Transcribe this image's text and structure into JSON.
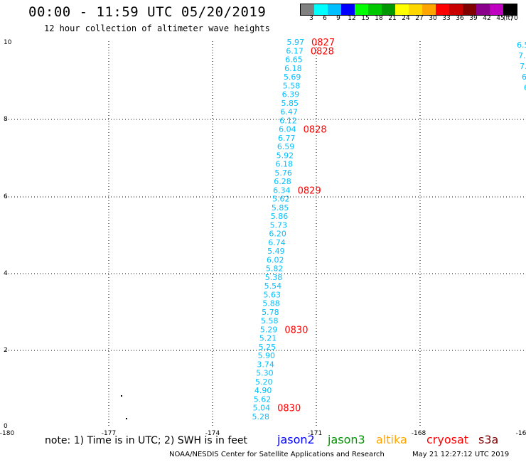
{
  "title": "00:00 - 11:59 UTC 05/20/2019",
  "subtitle": "12 hour collection of altimeter wave heights",
  "legend": {
    "labels": [
      "3",
      "6",
      "9",
      "12",
      "15",
      "18",
      "21",
      "24",
      "27",
      "30",
      "33",
      "36",
      "39",
      "42",
      "45",
      "70"
    ],
    "unit": "(ft)",
    "colors": [
      "#808080",
      "#00ffff",
      "#00bfff",
      "#0000ff",
      "#00ff00",
      "#00c800",
      "#009600",
      "#ffff00",
      "#ffd700",
      "#ffa500",
      "#ff0000",
      "#c80000",
      "#800000",
      "#8b008b",
      "#c000c0",
      "#000000"
    ]
  },
  "axes": {
    "x_ticks": [
      "-180",
      "-177",
      "-174",
      "-171",
      "-168",
      "-16"
    ],
    "y_ticks": [
      "10",
      "8",
      "6",
      "4",
      "2",
      "0"
    ]
  },
  "track": {
    "color": "#00bfff",
    "values": [
      "5.97",
      "6.17",
      "6.65",
      "6.18",
      "5.69",
      "5.58",
      "6.39",
      "5.85",
      "6.47",
      "6.12",
      "6.04",
      "6.77",
      "6.59",
      "5.92",
      "6.18",
      "5.76",
      "6.28",
      "6.34",
      "5.62",
      "5.85",
      "5.86",
      "5.73",
      "6.20",
      "6.74",
      "5.49",
      "6.02",
      "5.82",
      "5.38",
      "5.54",
      "5.63",
      "5.88",
      "5.78",
      "5.58",
      "5.29",
      "5.21",
      "5.25",
      "5.90",
      "3.74",
      "5.30",
      "5.20",
      "4.90",
      "5.62",
      "5.04",
      "5.28"
    ],
    "time_labels": [
      {
        "index": 0,
        "text": "0827"
      },
      {
        "index": 1,
        "text": "0828"
      },
      {
        "index": 10,
        "text": "0828"
      },
      {
        "index": 17,
        "text": "0829"
      },
      {
        "index": 33,
        "text": "0830"
      },
      {
        "index": 42,
        "text": "0830"
      }
    ]
  },
  "edge_values": [
    "6.5",
    "7.",
    "7.",
    "6",
    "6"
  ],
  "note": "note: 1) Time is in UTC; 2) SWH is in feet",
  "satellites": [
    {
      "name": "jason2",
      "color": "#0000ff"
    },
    {
      "name": "jason3",
      "color": "#009600"
    },
    {
      "name": "altika",
      "color": "#ffa500"
    },
    {
      "name": "cryosat",
      "color": "#ff0000"
    },
    {
      "name": "s3a",
      "color": "#800000"
    }
  ],
  "credit": "NOAA/NESDIS Center for Satellite Applications and Research",
  "timestamp": "May 21 12:27:12 UTC 2019"
}
